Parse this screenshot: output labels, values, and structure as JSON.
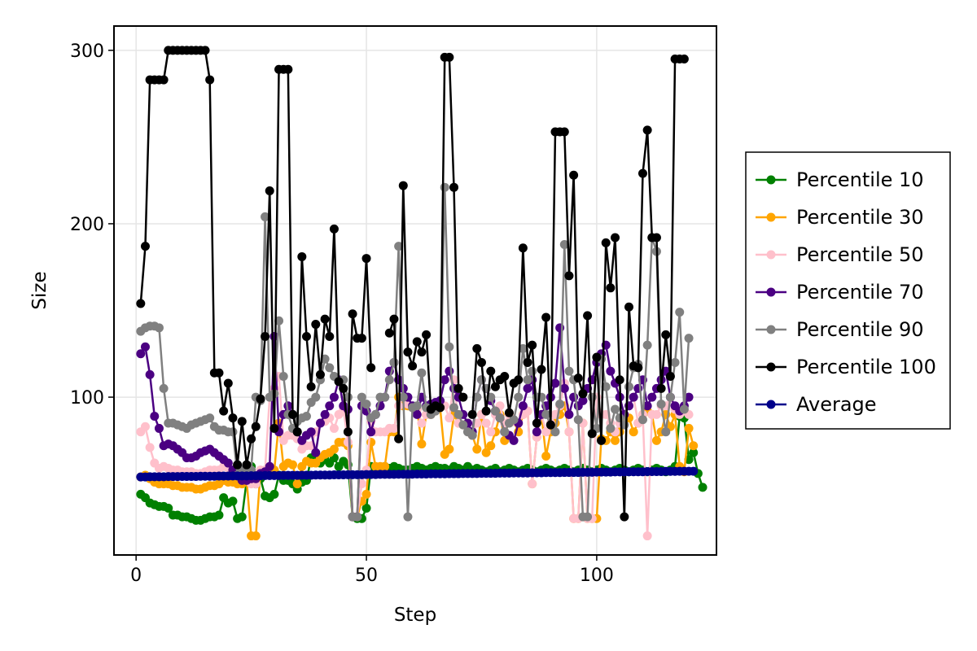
{
  "chart_data": {
    "type": "line",
    "title": "",
    "xlabel": "Step",
    "ylabel": "Size",
    "xlim": [
      -4.8,
      126
    ],
    "ylim": [
      9,
      314
    ],
    "xticks": [
      0,
      50,
      100
    ],
    "yticks": [
      100,
      200,
      300
    ],
    "grid": true,
    "legend_position": "right",
    "series": [
      {
        "name": "Percentile 10",
        "color": "#008000",
        "values": [
          44,
          42,
          39,
          38,
          37,
          37,
          36,
          32,
          32,
          31,
          31,
          30,
          29,
          29,
          30,
          31,
          31,
          32,
          42,
          39,
          40,
          30,
          31,
          52,
          60,
          50,
          53,
          43,
          42,
          44,
          55,
          52,
          52,
          50,
          47,
          51,
          52,
          65,
          63,
          62,
          64,
          62,
          65,
          60,
          63,
          61,
          31,
          30,
          30,
          36,
          60,
          58,
          58,
          60,
          59,
          60,
          59,
          58,
          58,
          59,
          60,
          59,
          58,
          59,
          60,
          59,
          59,
          58,
          60,
          59,
          58,
          60,
          58,
          59,
          58,
          57,
          58,
          59,
          57,
          58,
          59,
          58,
          57,
          58,
          59,
          58,
          57,
          58,
          59,
          58,
          57,
          58,
          59,
          58,
          57,
          58,
          59,
          58,
          57,
          58,
          59,
          58,
          57,
          58,
          59,
          58,
          57,
          58,
          59,
          58,
          57,
          58,
          59,
          58,
          57,
          58,
          60,
          89,
          88,
          64,
          68,
          56,
          48
        ]
      },
      {
        "name": "Percentile 30",
        "color": "#FFA500",
        "values": [
          54,
          55,
          53,
          51,
          50,
          50,
          50,
          49,
          49,
          48,
          48,
          48,
          47,
          47,
          48,
          49,
          49,
          50,
          52,
          51,
          51,
          50,
          50,
          52,
          20,
          20,
          57,
          56,
          57,
          58,
          85,
          60,
          62,
          61,
          50,
          60,
          63,
          62,
          62,
          65,
          67,
          68,
          70,
          74,
          74,
          72,
          31,
          31,
          40,
          44,
          74,
          60,
          60,
          60,
          80,
          80,
          100,
          95,
          95,
          94,
          93,
          73,
          90,
          90,
          92,
          94,
          67,
          70,
          90,
          85,
          84,
          85,
          78,
          70,
          90,
          68,
          72,
          80,
          90,
          75,
          90,
          86,
          80,
          90,
          92,
          50,
          77,
          90,
          66,
          80,
          85,
          90,
          95,
          80,
          30,
          30,
          85,
          30,
          30,
          30,
          76,
          75,
          80,
          75,
          80,
          90,
          88,
          80,
          85,
          90,
          92,
          90,
          75,
          80,
          90,
          83,
          90,
          60,
          57,
          82,
          72
        ]
      },
      {
        "name": "Percentile 50",
        "color": "#FFC0CB",
        "values": [
          80,
          83,
          71,
          62,
          59,
          60,
          59,
          58,
          58,
          57,
          57,
          57,
          56,
          56,
          57,
          58,
          58,
          58,
          60,
          59,
          58,
          58,
          58,
          58,
          50,
          50,
          58,
          58,
          100,
          105,
          112,
          75,
          78,
          78,
          76,
          70,
          72,
          72,
          80,
          85,
          86,
          88,
          82,
          90,
          93,
          74,
          31,
          31,
          50,
          58,
          86,
          80,
          80,
          80,
          82,
          82,
          95,
          100,
          96,
          94,
          93,
          85,
          90,
          90,
          92,
          94,
          95,
          88,
          110,
          85,
          84,
          85,
          78,
          85,
          90,
          85,
          80,
          90,
          95,
          85,
          90,
          86,
          85,
          90,
          92,
          50,
          77,
          90,
          80,
          85,
          90,
          95,
          108,
          80,
          30,
          30,
          85,
          30,
          30,
          100,
          90,
          90,
          85,
          80,
          85,
          90,
          95,
          100,
          85,
          90,
          20,
          90,
          90,
          95,
          95,
          100,
          93,
          90,
          92,
          90
        ]
      },
      {
        "name": "Percentile 70",
        "color": "#4B0082",
        "values": [
          125,
          129,
          113,
          89,
          82,
          72,
          73,
          72,
          70,
          68,
          65,
          65,
          66,
          68,
          69,
          70,
          68,
          66,
          64,
          62,
          58,
          55,
          52,
          52,
          53,
          53,
          56,
          57,
          60,
          135,
          80,
          90,
          95,
          90,
          80,
          75,
          78,
          80,
          68,
          85,
          90,
          95,
          100,
          110,
          95,
          93,
          31,
          31,
          95,
          92,
          80,
          90,
          95,
          100,
          115,
          120,
          110,
          105,
          100,
          95,
          90,
          100,
          95,
          96,
          97,
          98,
          110,
          115,
          105,
          100,
          90,
          85,
          80,
          100,
          110,
          105,
          98,
          92,
          88,
          80,
          78,
          75,
          85,
          95,
          105,
          110,
          80,
          90,
          95,
          100,
          108,
          140,
          105,
          90,
          100,
          95,
          98,
          105,
          110,
          120,
          125,
          130,
          115,
          108,
          100,
          90,
          95,
          100,
          105,
          110,
          95,
          100,
          105,
          110,
          115,
          100,
          95,
          92,
          95,
          100
        ]
      },
      {
        "name": "Percentile 90",
        "color": "#808080",
        "values": [
          138,
          140,
          141,
          141,
          140,
          105,
          85,
          85,
          84,
          83,
          82,
          84,
          85,
          86,
          87,
          88,
          83,
          81,
          81,
          80,
          80,
          55,
          58,
          58,
          58,
          100,
          98,
          204,
          100,
          102,
          144,
          112,
          90,
          82,
          86,
          88,
          89,
          97,
          100,
          110,
          122,
          117,
          112,
          109,
          110,
          100,
          31,
          31,
          100,
          96,
          88,
          90,
          100,
          100,
          110,
          120,
          187,
          100,
          31,
          94,
          95,
          114,
          94,
          90,
          92,
          94,
          221,
          129,
          94,
          90,
          84,
          80,
          78,
          100,
          110,
          105,
          100,
          92,
          88,
          80,
          85,
          87,
          100,
          128,
          110,
          115,
          100,
          100,
          90,
          84,
          80,
          96,
          188,
          115,
          110,
          87,
          31,
          31,
          100,
          82,
          122,
          106,
          82,
          93,
          88,
          84,
          106,
          117,
          119,
          87,
          130,
          192,
          184,
          96,
          80,
          100,
          120,
          149,
          93,
          134
        ]
      },
      {
        "name": "Percentile 100",
        "color": "#000000",
        "values": [
          154,
          187,
          283,
          283,
          283,
          283,
          300,
          300,
          300,
          300,
          300,
          300,
          300,
          300,
          300,
          283,
          114,
          114,
          92,
          108,
          88,
          61,
          86,
          61,
          76,
          83,
          99,
          135,
          219,
          82,
          289,
          289,
          289,
          90,
          80,
          181,
          135,
          106,
          142,
          113,
          145,
          135,
          197,
          109,
          105,
          80,
          148,
          134,
          134,
          180,
          117,
          null,
          null,
          null,
          137,
          145,
          76,
          222,
          126,
          118,
          132,
          126,
          136,
          93,
          95,
          94,
          296,
          296,
          221,
          105,
          100,
          null,
          90,
          128,
          120,
          92,
          115,
          106,
          110,
          112,
          91,
          108,
          110,
          186,
          120,
          130,
          85,
          116,
          146,
          84,
          253,
          253,
          253,
          170,
          228,
          111,
          102,
          147,
          79,
          123,
          75,
          189,
          163,
          192,
          110,
          31,
          152,
          118,
          117,
          229,
          254,
          192,
          192,
          105,
          136,
          112,
          295,
          295,
          295
        ]
      },
      {
        "name": "Average",
        "color": "#00008B",
        "values": [
          54.0,
          54.0,
          54.1,
          54.1,
          54.1,
          54.1,
          54.2,
          54.2,
          54.2,
          54.3,
          54.3,
          54.3,
          54.3,
          54.4,
          54.4,
          54.4,
          54.4,
          54.5,
          54.5,
          54.5,
          54.6,
          54.6,
          54.6,
          54.6,
          54.7,
          54.7,
          54.7,
          54.8,
          54.8,
          54.8,
          54.8,
          54.9,
          54.9,
          54.9,
          54.9,
          55.0,
          55.0,
          55.0,
          55.1,
          55.1,
          55.1,
          55.1,
          55.2,
          55.2,
          55.2,
          55.3,
          55.3,
          55.3,
          55.3,
          55.4,
          55.4,
          55.4,
          55.5,
          55.5,
          55.5,
          55.5,
          55.6,
          55.6,
          55.6,
          55.6,
          55.7,
          55.7,
          55.7,
          55.8,
          55.8,
          55.8,
          55.8,
          55.9,
          55.9,
          55.9,
          56.0,
          56.0,
          56.0,
          56.0,
          56.1,
          56.1,
          56.1,
          56.1,
          56.2,
          56.2,
          56.2,
          56.3,
          56.3,
          56.3,
          56.3,
          56.4,
          56.4,
          56.4,
          56.5,
          56.5,
          56.5,
          56.5,
          56.6,
          56.6,
          56.6,
          56.6,
          56.7,
          56.7,
          56.7,
          56.8,
          56.8,
          56.8,
          56.8,
          56.9,
          56.9,
          56.9,
          57.0,
          57.0,
          57.0,
          57.0,
          57.1,
          57.1,
          57.1,
          57.1,
          57.2,
          57.2,
          57.2,
          57.3,
          57.3,
          57.3,
          57.3
        ]
      }
    ]
  }
}
